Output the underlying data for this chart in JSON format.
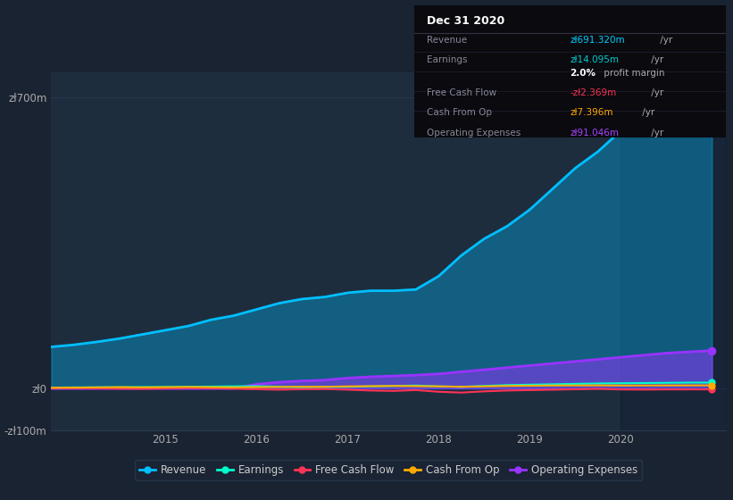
{
  "bg_color": "#1a2332",
  "plot_bg_color": "#1e2d3e",
  "grid_color": "#2a3a50",
  "title_box": {
    "title": "Dec 31 2020",
    "rows": [
      {
        "label": "Revenue",
        "value": "zł691.320m",
        "value_color": "#00cfff",
        "suffix": " /yr"
      },
      {
        "label": "Earnings",
        "value": "zł14.095m",
        "value_color": "#00cfcf",
        "suffix": " /yr"
      },
      {
        "label": "",
        "value": "2.0%",
        "value_color": "#ffffff",
        "suffix": " profit margin"
      },
      {
        "label": "Free Cash Flow",
        "value": "-zł2.369m",
        "value_color": "#ff3355",
        "suffix": " /yr"
      },
      {
        "label": "Cash From Op",
        "value": "zł7.396m",
        "value_color": "#ffaa00",
        "suffix": " /yr"
      },
      {
        "label": "Operating Expenses",
        "value": "zł91.046m",
        "value_color": "#aa44ff",
        "suffix": " /yr"
      }
    ]
  },
  "years": [
    2013.75,
    2014.0,
    2014.25,
    2014.5,
    2014.75,
    2015.0,
    2015.25,
    2015.5,
    2015.75,
    2016.0,
    2016.25,
    2016.5,
    2016.75,
    2017.0,
    2017.25,
    2017.5,
    2017.75,
    2018.0,
    2018.25,
    2018.5,
    2018.75,
    2019.0,
    2019.25,
    2019.5,
    2019.75,
    2020.0,
    2020.25,
    2020.5,
    2020.75,
    2021.0
  ],
  "revenue": [
    100,
    105,
    112,
    120,
    130,
    140,
    150,
    165,
    175,
    190,
    205,
    215,
    220,
    230,
    235,
    235,
    238,
    270,
    320,
    360,
    390,
    430,
    480,
    530,
    570,
    620,
    650,
    670,
    685,
    691
  ],
  "earnings": [
    2,
    2.5,
    2.8,
    3,
    3.2,
    3.5,
    4,
    4.5,
    5,
    5.5,
    4,
    3,
    3.5,
    4,
    5,
    6,
    7,
    5,
    4,
    6,
    8,
    9,
    10,
    11,
    12,
    12.5,
    13,
    13.5,
    14,
    14.095
  ],
  "free_cash_flow": [
    1,
    0.5,
    0.2,
    -0.5,
    -1,
    0,
    1,
    0.5,
    -0.5,
    -2,
    -3,
    -2,
    -1.5,
    -3,
    -5,
    -6,
    -4,
    -8,
    -10,
    -7,
    -5,
    -4,
    -3,
    -2,
    -1,
    -2.5,
    -2.8,
    -2.5,
    -2.4,
    -2.369
  ],
  "cash_from_op": [
    1.5,
    2,
    2.5,
    3,
    2.5,
    3,
    3.5,
    3,
    2.5,
    3,
    3.5,
    4,
    4,
    5,
    5.5,
    6,
    5.5,
    5,
    4,
    5,
    6,
    6.5,
    7,
    7.2,
    7.3,
    7,
    7.1,
    7.2,
    7.3,
    7.396
  ],
  "operating_expenses": [
    0,
    0,
    0,
    0,
    0,
    0,
    0,
    0,
    0,
    10,
    15,
    18,
    20,
    25,
    28,
    30,
    32,
    35,
    40,
    45,
    50,
    55,
    60,
    65,
    70,
    75,
    80,
    85,
    88,
    91.046
  ],
  "revenue_color": "#00bfff",
  "earnings_color": "#00ffcc",
  "fcf_color": "#ff3355",
  "cashop_color": "#ffaa00",
  "opex_color": "#9933ff",
  "ylim": [
    -100,
    760
  ],
  "xlim": [
    2013.75,
    2021.15
  ],
  "yticks": [
    -100,
    0,
    700
  ],
  "ytick_labels": [
    "-zł100m",
    "zł0",
    "zł700m"
  ],
  "xticks": [
    2015,
    2016,
    2017,
    2018,
    2019,
    2020
  ],
  "legend_items": [
    {
      "label": "Revenue",
      "color": "#00bfff"
    },
    {
      "label": "Earnings",
      "color": "#00ffcc"
    },
    {
      "label": "Free Cash Flow",
      "color": "#ff3355"
    },
    {
      "label": "Cash From Op",
      "color": "#ffaa00"
    },
    {
      "label": "Operating Expenses",
      "color": "#9933ff"
    }
  ]
}
